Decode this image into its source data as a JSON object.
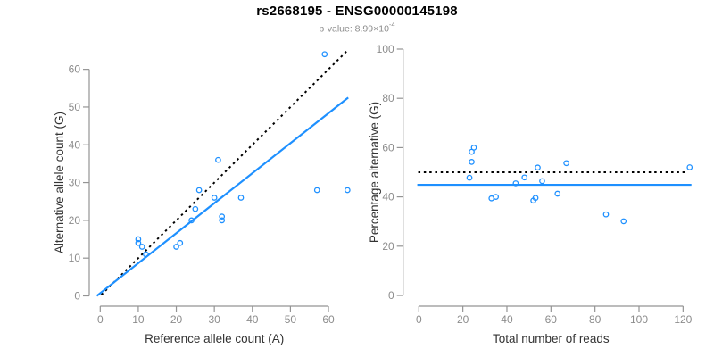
{
  "header": {
    "title": "rs2668195 - ENSG00000145198",
    "subtitle_text": "p-value: 8.99×10",
    "subtitle_exponent": "-4"
  },
  "colors": {
    "accent_blue": "#1E90FF",
    "dotted_line": "#000000",
    "axis_line": "#949494",
    "tick_label": "#8c8c8c",
    "axis_title": "#333333",
    "subtitle": "#8c8c8c"
  },
  "chart_data": [
    {
      "type": "scatter",
      "name": "allele-counts-scatter",
      "xlabel": "Reference allele count (A)",
      "ylabel": "Alternative allele count (G)",
      "xticks": [
        0,
        10,
        20,
        30,
        40,
        50,
        60
      ],
      "yticks": [
        0,
        10,
        20,
        30,
        40,
        50,
        60
      ],
      "xlim": [
        0,
        66
      ],
      "ylim": [
        0,
        66
      ],
      "grid": false,
      "points": [
        [
          10,
          15
        ],
        [
          10,
          14
        ],
        [
          11,
          13
        ],
        [
          12,
          11
        ],
        [
          20,
          13
        ],
        [
          21,
          14
        ],
        [
          24,
          20
        ],
        [
          25,
          23
        ],
        [
          26,
          28
        ],
        [
          30,
          26
        ],
        [
          31,
          36
        ],
        [
          32,
          20
        ],
        [
          32,
          21
        ],
        [
          37,
          26
        ],
        [
          57,
          28
        ],
        [
          59,
          64
        ],
        [
          65,
          28
        ]
      ],
      "lines": [
        {
          "name": "identity-line",
          "style": "dotted",
          "color": "#000000",
          "x1": 0.3,
          "y1": 0.3,
          "x2": 64.8,
          "y2": 64.8
        },
        {
          "name": "fit-line",
          "style": "solid",
          "color": "#1E90FF",
          "x1": -0.9,
          "y1": 0,
          "x2": 65.2,
          "y2": 52.5
        }
      ]
    },
    {
      "type": "scatter",
      "name": "percentage-vs-reads-scatter",
      "xlabel": "Total number of reads",
      "ylabel": "Percentage alternative (G)",
      "xticks": [
        0,
        20,
        40,
        60,
        80,
        100,
        120
      ],
      "yticks": [
        0,
        20,
        40,
        60,
        80,
        100
      ],
      "xlim": [
        0,
        124
      ],
      "ylim": [
        0,
        100
      ],
      "grid": false,
      "points": [
        [
          25,
          60
        ],
        [
          24,
          58.3
        ],
        [
          24,
          54.2
        ],
        [
          23,
          47.8
        ],
        [
          33,
          39.4
        ],
        [
          35,
          40
        ],
        [
          44,
          45.5
        ],
        [
          48,
          47.9
        ],
        [
          54,
          51.9
        ],
        [
          56,
          46.4
        ],
        [
          67,
          53.7
        ],
        [
          52,
          38.5
        ],
        [
          53,
          39.6
        ],
        [
          63,
          41.3
        ],
        [
          85,
          32.9
        ],
        [
          123,
          52
        ],
        [
          93,
          30.1
        ]
      ],
      "lines": [
        {
          "name": "null-line",
          "style": "dotted",
          "color": "#000000",
          "x1": -0.3,
          "y1": 50,
          "x2": 122,
          "y2": 50
        },
        {
          "name": "fit-line",
          "style": "solid",
          "color": "#1E90FF",
          "x1": -0.7,
          "y1": 44.9,
          "x2": 123.8,
          "y2": 44.9
        }
      ]
    }
  ]
}
